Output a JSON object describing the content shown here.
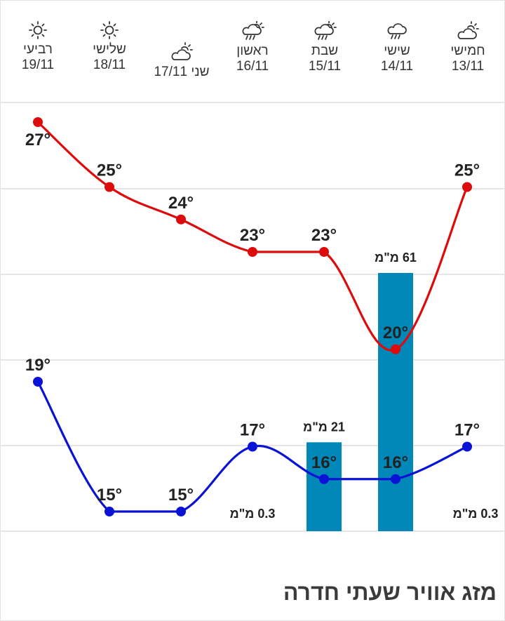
{
  "title": "מזג אוויר שעתי חדרה",
  "days": [
    {
      "name": "רביעי",
      "date": "19/11",
      "icon": "sun-icon"
    },
    {
      "name": "שלישי",
      "date": "18/11",
      "icon": "sun-icon"
    },
    {
      "name": "שני",
      "date": "17/11",
      "icon": "partly-cloudy-icon"
    },
    {
      "name": "ראשון",
      "date": "16/11",
      "icon": "rain-sun-icon"
    },
    {
      "name": "שבת",
      "date": "15/11",
      "icon": "rain-sun-icon"
    },
    {
      "name": "שישי",
      "date": "14/11",
      "icon": "rain-icon"
    },
    {
      "name": "חמישי",
      "date": "13/11",
      "icon": "partly-cloudy-icon"
    }
  ],
  "colors": {
    "high": "#dd0b0b",
    "low": "#0a12d6",
    "rain_bar": "#0288b8",
    "grid": "#e6e6e6",
    "text": "#222222"
  },
  "chart_data": {
    "type": "line",
    "categories": [
      "19/11",
      "18/11",
      "17/11",
      "16/11",
      "15/11",
      "14/11",
      "13/11"
    ],
    "series": [
      {
        "values": [
          27,
          25,
          24,
          23,
          23,
          20,
          25
        ]
      },
      {
        "values": [
          19,
          15,
          15,
          17,
          16,
          16,
          17
        ]
      }
    ],
    "temp_labels_high": [
      "27°",
      "25°",
      "24°",
      "23°",
      "23°",
      "20°",
      "25°"
    ],
    "temp_labels_low": [
      "19°",
      "15°",
      "15°",
      "17°",
      "16°",
      "16°",
      "17°"
    ],
    "precipitation": {
      "type": "bar",
      "values": [
        null,
        null,
        null,
        0.3,
        21,
        61,
        0.3
      ],
      "labels": [
        "",
        "",
        "",
        "0.3 מ\"מ",
        "21 מ\"מ",
        "61 מ\"מ",
        "0.3 מ\"מ"
      ],
      "ylim": [
        0,
        75
      ]
    },
    "ylim": [
      13,
      28
    ],
    "grid": true,
    "legend": "none"
  }
}
